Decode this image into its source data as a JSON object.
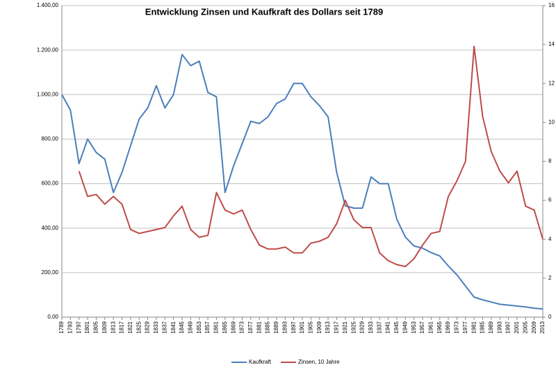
{
  "chart_data": {
    "type": "line",
    "title": "Entwicklung Zinsen und Kaufkraft des Dollars seit 1789",
    "x": [
      1789,
      1793,
      1797,
      1801,
      1805,
      1809,
      1813,
      1817,
      1821,
      1825,
      1829,
      1833,
      1837,
      1841,
      1845,
      1849,
      1853,
      1857,
      1861,
      1865,
      1869,
      1873,
      1877,
      1881,
      1885,
      1889,
      1893,
      1897,
      1901,
      1905,
      1909,
      1913,
      1917,
      1921,
      1925,
      1929,
      1933,
      1937,
      1941,
      1945,
      1949,
      1953,
      1957,
      1961,
      1965,
      1969,
      1973,
      1977,
      1981,
      1985,
      1989,
      1993,
      1997,
      2001,
      2005,
      2009,
      2013
    ],
    "xlim": [
      1789,
      2013
    ],
    "series": [
      {
        "name": "Kaufkraft",
        "color": "#4a7ebb",
        "values": [
          1000,
          930,
          690,
          800,
          740,
          710,
          560,
          650,
          770,
          890,
          940,
          1040,
          940,
          1000,
          1180,
          1130,
          1150,
          1010,
          990,
          560,
          680,
          780,
          880,
          870,
          900,
          960,
          980,
          1050,
          1050,
          990,
          950,
          900,
          650,
          500,
          490,
          490,
          630,
          600,
          600,
          440,
          360,
          320,
          310,
          290,
          275,
          230,
          190,
          140,
          90,
          78,
          68,
          58,
          54,
          50,
          46,
          40,
          37
        ]
      },
      {
        "name": "Zinsen, 10 Jahre",
        "color": "#be4b48",
        "axis": "y2",
        "values": [
          null,
          null,
          7.5,
          6.2,
          6.3,
          5.8,
          6.2,
          5.8,
          4.5,
          4.3,
          4.4,
          4.5,
          4.6,
          5.2,
          5.7,
          4.5,
          4.1,
          4.2,
          6.4,
          5.5,
          5.3,
          5.5,
          4.5,
          3.7,
          3.5,
          3.5,
          3.6,
          3.3,
          3.3,
          3.8,
          3.9,
          4.1,
          4.8,
          6.0,
          5.0,
          4.6,
          4.6,
          3.3,
          2.9,
          2.7,
          2.6,
          3.0,
          3.7,
          4.3,
          4.4,
          6.2,
          7.0,
          8.0,
          13.9,
          10.3,
          8.5,
          7.5,
          6.9,
          7.5,
          5.7,
          5.5,
          4.0
        ]
      }
    ],
    "ylim": [
      0,
      1400
    ],
    "yticks": [
      {
        "value": 0,
        "label": "0,00"
      },
      {
        "value": 200,
        "label": "200,00"
      },
      {
        "value": 400,
        "label": "400,00"
      },
      {
        "value": 600,
        "label": "600,00"
      },
      {
        "value": 800,
        "label": "800,00"
      },
      {
        "value": 1000,
        "label": "1.000,00"
      },
      {
        "value": 1200,
        "label": "1.200,00"
      },
      {
        "value": 1400,
        "label": "1.400,00"
      }
    ],
    "y2lim": [
      0,
      16
    ],
    "y2ticks": [
      0,
      2,
      4,
      6,
      8,
      10,
      12,
      14,
      16
    ],
    "grid": true,
    "legend": "bottom"
  }
}
